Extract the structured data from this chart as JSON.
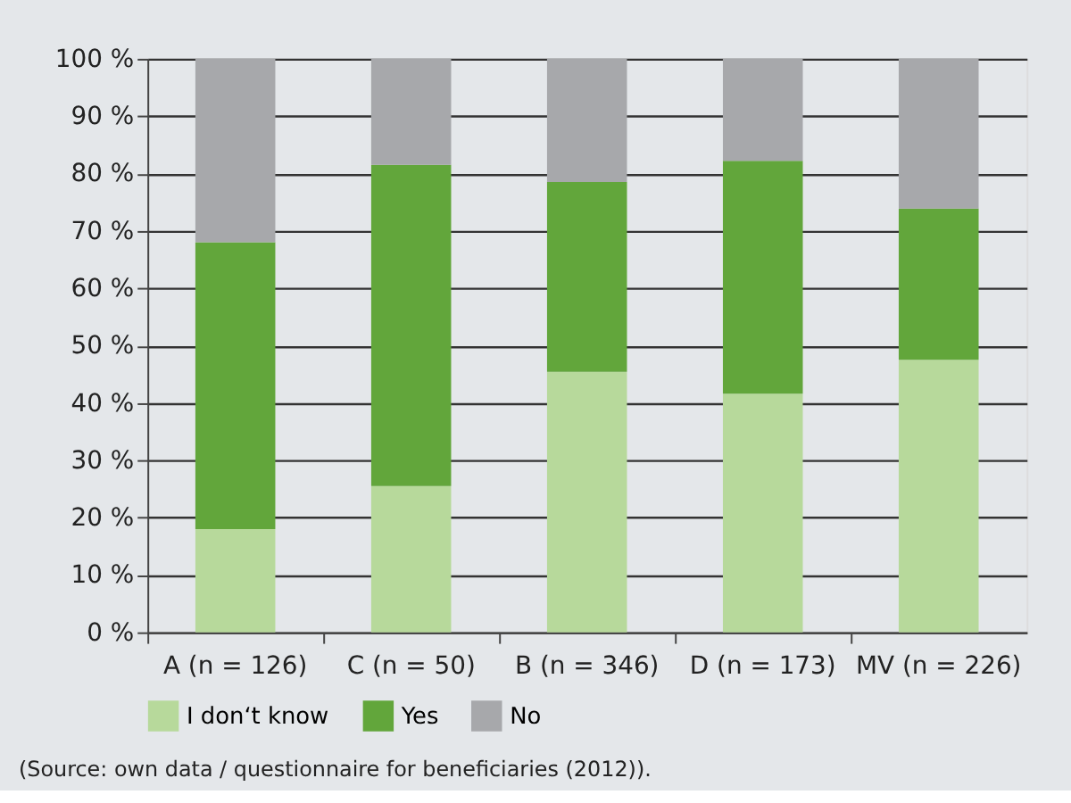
{
  "chart_data": {
    "type": "bar",
    "stacked": true,
    "categories": [
      "A (n = 126)",
      "C (n = 50)",
      "B (n = 346)",
      "D (n = 173)",
      "MV (n = 226)"
    ],
    "series": [
      {
        "name": "I don‘t know",
        "color": "#b7d99b",
        "values": [
          18,
          25.5,
          45.4,
          41.6,
          47.5
        ]
      },
      {
        "name": "Yes",
        "color": "#62a63b",
        "values": [
          50,
          56,
          33.1,
          40.6,
          26.4
        ]
      },
      {
        "name": "No",
        "color": "#a7a8ab",
        "values": [
          32,
          18.5,
          21.5,
          17.8,
          26.1
        ]
      }
    ],
    "ylim": [
      0,
      100
    ],
    "yticks": [
      {
        "value": 0,
        "label": "0 %"
      },
      {
        "value": 10,
        "label": "10 %"
      },
      {
        "value": 20,
        "label": "20 %"
      },
      {
        "value": 30,
        "label": "30 %"
      },
      {
        "value": 40,
        "label": "40 %"
      },
      {
        "value": 50,
        "label": "50 %"
      },
      {
        "value": 60,
        "label": "60 %"
      },
      {
        "value": 70,
        "label": "70 %"
      },
      {
        "value": 80,
        "label": "80 %"
      },
      {
        "value": 90,
        "label": "90 %"
      },
      {
        "value": 100,
        "label": "100 %"
      }
    ],
    "grid": "y",
    "legend": "bottom left",
    "annotations": [
      "(Source: own data / questionnaire for beneficiaries (2012))."
    ]
  }
}
